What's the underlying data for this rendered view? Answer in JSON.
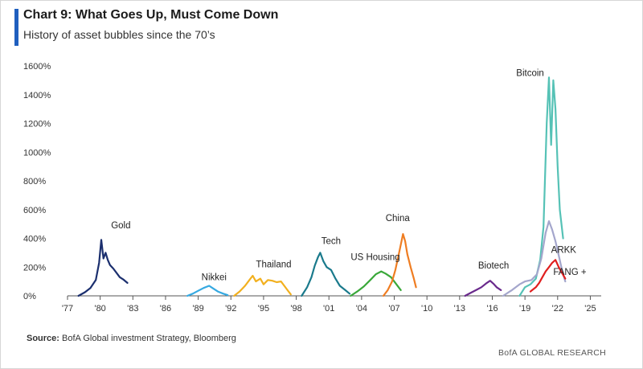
{
  "chart_data": {
    "type": "line",
    "title": "Chart 9: What Goes Up, Must Come Down",
    "subtitle": "History of asset bubbles since the 70’s",
    "xlabel": "",
    "ylabel": "",
    "xlim": [
      1977,
      2026
    ],
    "ylim": [
      0,
      1600
    ],
    "x_ticks": [
      "'77",
      "'80",
      "'83",
      "'86",
      "'89",
      "'92",
      "'95",
      "'98",
      "'01",
      "'04",
      "'07",
      "'10",
      "'13",
      "'16",
      "'19",
      "'22",
      "'25"
    ],
    "x_tick_values": [
      1977,
      1980,
      1983,
      1986,
      1989,
      1992,
      1995,
      1998,
      2001,
      2004,
      2007,
      2010,
      2013,
      2016,
      2019,
      2022,
      2025
    ],
    "y_ticks": [
      "0%",
      "200%",
      "400%",
      "600%",
      "800%",
      "1000%",
      "1200%",
      "1400%",
      "1600%"
    ],
    "y_tick_values": [
      0,
      200,
      400,
      600,
      800,
      1000,
      1200,
      1400,
      1600
    ],
    "grid": false,
    "series": [
      {
        "name": "Gold",
        "color": "#1b2f6e",
        "x": [
          1978.0,
          1978.6,
          1979.1,
          1979.6,
          1979.9,
          1980.1,
          1980.3,
          1980.5,
          1980.7,
          1980.9,
          1981.2,
          1981.5,
          1981.8,
          1982.1,
          1982.5
        ],
        "y": [
          0,
          25,
          55,
          110,
          230,
          390,
          260,
          300,
          250,
          215,
          190,
          160,
          130,
          115,
          90
        ]
      },
      {
        "name": "Nikkei",
        "color": "#36a9e1",
        "x": [
          1988.0,
          1988.5,
          1989.0,
          1989.5,
          1990.0,
          1990.4,
          1990.8,
          1991.3,
          1991.7
        ],
        "y": [
          0,
          15,
          35,
          55,
          70,
          50,
          30,
          15,
          5
        ]
      },
      {
        "name": "Thailand",
        "color": "#f2b01e",
        "x": [
          1992.3,
          1992.8,
          1993.3,
          1993.7,
          1994.0,
          1994.3,
          1994.7,
          1995.0,
          1995.4,
          1995.8,
          1996.2,
          1996.6,
          1996.9,
          1997.2,
          1997.5
        ],
        "y": [
          0,
          30,
          70,
          110,
          140,
          100,
          120,
          80,
          110,
          105,
          95,
          100,
          70,
          40,
          10
        ]
      },
      {
        "name": "Tech",
        "color": "#1a7a8c",
        "x": [
          1998.5,
          1999.0,
          1999.4,
          1999.7,
          2000.0,
          2000.2,
          2000.5,
          2000.8,
          2001.2,
          2001.6,
          2002.0,
          2002.5,
          2002.9
        ],
        "y": [
          0,
          60,
          130,
          210,
          270,
          300,
          240,
          200,
          180,
          120,
          70,
          40,
          15
        ]
      },
      {
        "name": "US Housing",
        "color": "#3aa83a",
        "x": [
          2003.0,
          2003.6,
          2004.2,
          2004.8,
          2005.3,
          2005.8,
          2006.2,
          2006.7,
          2007.1,
          2007.6
        ],
        "y": [
          0,
          30,
          65,
          110,
          150,
          170,
          155,
          130,
          90,
          40
        ]
      },
      {
        "name": "China",
        "color": "#ef7d22",
        "x": [
          2006.0,
          2006.4,
          2006.8,
          2007.1,
          2007.5,
          2007.8,
          2008.0,
          2008.2,
          2008.5,
          2008.8,
          2009.0
        ],
        "y": [
          0,
          40,
          100,
          180,
          320,
          430,
          380,
          290,
          200,
          120,
          60
        ]
      },
      {
        "name": "Biotech",
        "color": "#6a2a8c",
        "x": [
          2013.5,
          2014.0,
          2014.5,
          2015.0,
          2015.5,
          2015.8,
          2016.1,
          2016.4,
          2016.8
        ],
        "y": [
          0,
          20,
          40,
          60,
          90,
          105,
          85,
          60,
          40
        ]
      },
      {
        "name": "Bitcoin",
        "color": "#56c2b6",
        "x": [
          2018.5,
          2019.0,
          2019.5,
          2020.0,
          2020.4,
          2020.7,
          2021.0,
          2021.2,
          2021.4,
          2021.6,
          2021.8,
          2022.0,
          2022.2,
          2022.5
        ],
        "y": [
          0,
          60,
          80,
          120,
          250,
          480,
          1200,
          1520,
          1050,
          1500,
          1300,
          900,
          600,
          400
        ]
      },
      {
        "name": "ARKK",
        "color": "#a4a6cc",
        "x": [
          2017.0,
          2017.8,
          2018.5,
          2019.0,
          2019.6,
          2020.1,
          2020.5,
          2020.9,
          2021.2,
          2021.5,
          2021.8,
          2022.1,
          2022.4,
          2022.7
        ],
        "y": [
          0,
          40,
          80,
          100,
          110,
          150,
          260,
          440,
          520,
          460,
          380,
          280,
          180,
          100
        ]
      },
      {
        "name": "FANG +",
        "color": "#e01f1f",
        "x": [
          2019.5,
          2020.0,
          2020.3,
          2020.6,
          2020.9,
          2021.2,
          2021.5,
          2021.8,
          2022.1,
          2022.4,
          2022.7
        ],
        "y": [
          30,
          60,
          90,
          130,
          170,
          200,
          230,
          250,
          200,
          160,
          120
        ]
      }
    ],
    "annotations": [
      {
        "text": "Gold",
        "x": 1981.0,
        "y": 470
      },
      {
        "text": "Nikkei",
        "x": 1989.3,
        "y": 110
      },
      {
        "text": "Thailand",
        "x": 1994.3,
        "y": 200
      },
      {
        "text": "Tech",
        "x": 2000.3,
        "y": 360
      },
      {
        "text": "US Housing",
        "x": 2003.0,
        "y": 250
      },
      {
        "text": "China",
        "x": 2006.2,
        "y": 520
      },
      {
        "text": "Biotech",
        "x": 2014.7,
        "y": 190
      },
      {
        "text": "Bitcoin",
        "x": 2018.2,
        "y": 1530
      },
      {
        "text": "ARKK",
        "x": 2021.4,
        "y": 300
      },
      {
        "text": "FANG +",
        "x": 2021.6,
        "y": 145
      }
    ]
  },
  "footer": {
    "source_label": "Source:",
    "source_text": "BofA Global investment Strategy, Bloomberg",
    "brand": "BofA GLOBAL RESEARCH"
  }
}
